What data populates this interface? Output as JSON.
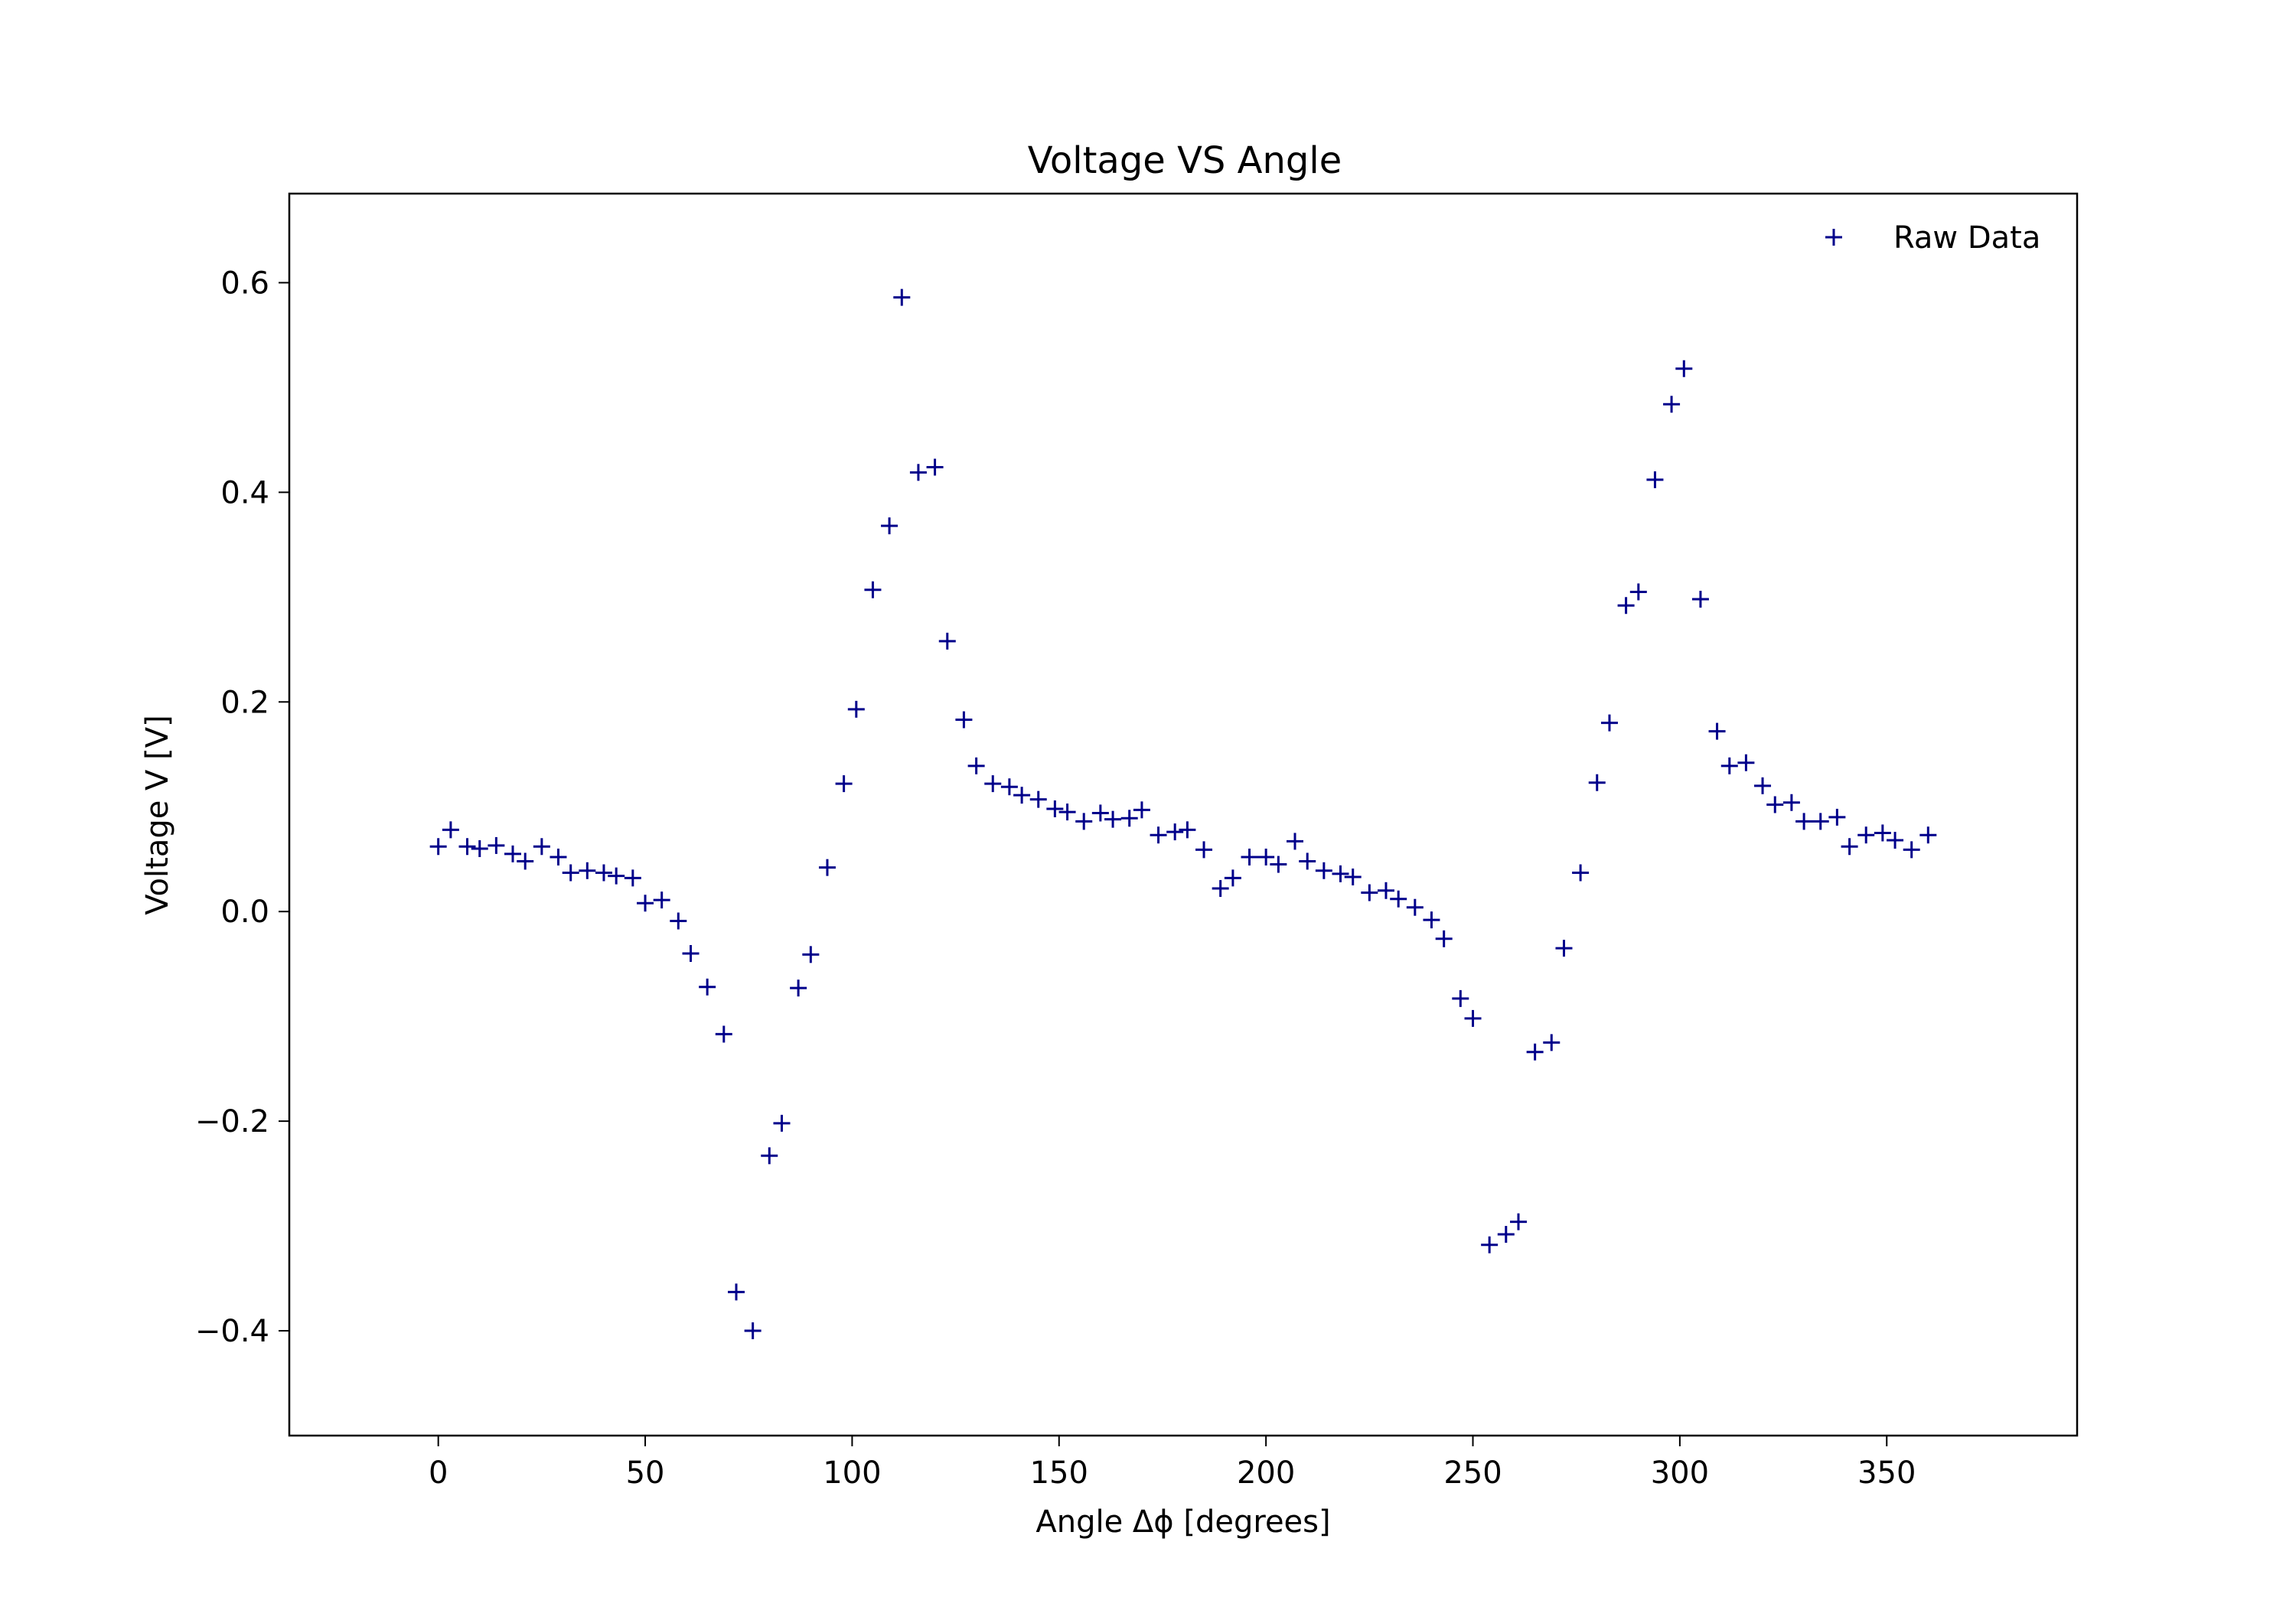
{
  "chart_data": {
    "type": "scatter",
    "title": "Voltage VS Angle",
    "xlabel": "Angle Δϕ [degrees]",
    "ylabel": "Voltage V [V]",
    "xlim": [
      -36,
      396
    ],
    "ylim": [
      -0.5,
      0.685
    ],
    "xticks": [
      0,
      50,
      100,
      150,
      200,
      250,
      300,
      350
    ],
    "yticks": [
      -0.4,
      -0.2,
      0.0,
      0.2,
      0.4,
      0.6
    ],
    "ytick_labels": [
      "−0.4",
      "−0.2",
      "0.0",
      "0.2",
      "0.4",
      "0.6"
    ],
    "xtick_labels": [
      "0",
      "50",
      "100",
      "150",
      "200",
      "250",
      "300",
      "350"
    ],
    "grid": false,
    "legend_position": "top-right",
    "marker": "+",
    "color": "#00008b",
    "series": [
      {
        "name": "Raw Data",
        "x": [
          0,
          3,
          7,
          10,
          14,
          18,
          21,
          25,
          29,
          32,
          36,
          40,
          43,
          47,
          50,
          54,
          58,
          61,
          65,
          69,
          72,
          76,
          80,
          83,
          87,
          90,
          94,
          98,
          101,
          105,
          109,
          112,
          116,
          120,
          123,
          127,
          130,
          134,
          138,
          141,
          145,
          149,
          152,
          156,
          160,
          163,
          167,
          170,
          174,
          178,
          181,
          185,
          189,
          192,
          196,
          200,
          203,
          207,
          210,
          214,
          218,
          221,
          225,
          229,
          232,
          236,
          240,
          243,
          247,
          250,
          254,
          258,
          261,
          265,
          269,
          272,
          276,
          280,
          283,
          287,
          290,
          294,
          298,
          301,
          305,
          309,
          312,
          316,
          320,
          323,
          327,
          330,
          334,
          338,
          341,
          345,
          349,
          352,
          356,
          360
        ],
        "y": [
          0.062,
          0.078,
          0.062,
          0.06,
          0.063,
          0.055,
          0.048,
          0.062,
          0.052,
          0.037,
          0.039,
          0.037,
          0.034,
          0.032,
          0.008,
          0.011,
          -0.009,
          -0.04,
          -0.072,
          -0.117,
          -0.363,
          -0.4,
          -0.233,
          -0.202,
          -0.073,
          -0.041,
          0.042,
          0.122,
          0.193,
          0.307,
          0.368,
          0.586,
          0.419,
          0.424,
          0.258,
          0.183,
          0.139,
          0.122,
          0.119,
          0.111,
          0.107,
          0.098,
          0.095,
          0.086,
          0.094,
          0.088,
          0.089,
          0.097,
          0.073,
          0.076,
          0.078,
          0.059,
          0.022,
          0.032,
          0.052,
          0.052,
          0.045,
          0.067,
          0.048,
          0.039,
          0.036,
          0.033,
          0.018,
          0.02,
          0.012,
          0.004,
          -0.008,
          -0.026,
          -0.083,
          -0.102,
          -0.318,
          -0.308,
          -0.296,
          -0.134,
          -0.125,
          -0.035,
          0.037,
          0.123,
          0.18,
          0.292,
          0.305,
          0.412,
          0.484,
          0.518,
          0.298,
          0.172,
          0.139,
          0.142,
          0.12,
          0.102,
          0.104,
          0.086,
          0.086,
          0.09,
          0.062,
          0.073,
          0.075,
          0.068,
          0.059,
          0.073
        ]
      }
    ]
  }
}
